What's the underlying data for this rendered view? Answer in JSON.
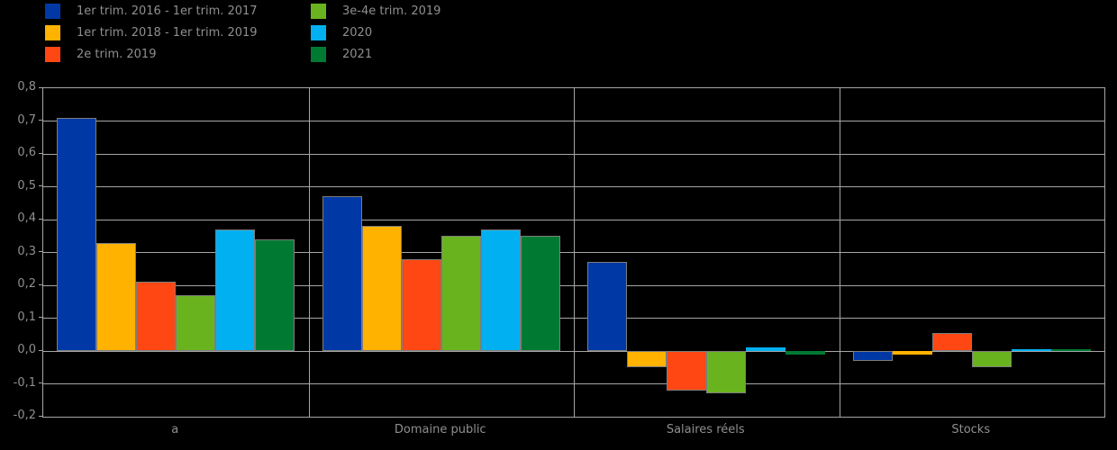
{
  "chart_data": {
    "type": "bar",
    "title": "",
    "background": "#000000",
    "grid": true,
    "grid_color": "#a6a6a6",
    "text_color": "#8f8f8f",
    "legend_position": "top-left, two columns",
    "ylim": [
      -0.2,
      0.8
    ],
    "ytick_step": 0.1,
    "ytick_labels": [
      "0,8",
      "0,7",
      "0,6",
      "0,5",
      "0,4",
      "0,3",
      "0,2",
      "0,1",
      "0,0",
      "-0,1",
      "-0,2"
    ],
    "xlabel": "",
    "ylabel": "",
    "categories": [
      "a",
      "Domaine public",
      "Salaires réels",
      "Stocks"
    ],
    "series": [
      {
        "name": "1er trim. 2016 - 1er trim. 2017",
        "color": "#0039A6",
        "values": [
          0.71,
          0.47,
          0.27,
          -0.03
        ]
      },
      {
        "name": "1er trim. 2018 - 1er trim. 2019",
        "color": "#FFB200",
        "values": [
          0.33,
          0.38,
          -0.05,
          -0.01
        ]
      },
      {
        "name": "2e trim. 2019",
        "color": "#FF4713",
        "values": [
          0.21,
          0.28,
          -0.12,
          0.055
        ]
      },
      {
        "name": "3e-4e trim. 2019",
        "color": "#69B41E",
        "values": [
          0.17,
          0.35,
          -0.13,
          -0.05
        ]
      },
      {
        "name": "2020",
        "color": "#00B0F0",
        "values": [
          0.37,
          0.37,
          0.01,
          0.005
        ]
      },
      {
        "name": "2021",
        "color": "#007A33",
        "values": [
          0.34,
          0.35,
          -0.01,
          0.005
        ]
      }
    ]
  }
}
